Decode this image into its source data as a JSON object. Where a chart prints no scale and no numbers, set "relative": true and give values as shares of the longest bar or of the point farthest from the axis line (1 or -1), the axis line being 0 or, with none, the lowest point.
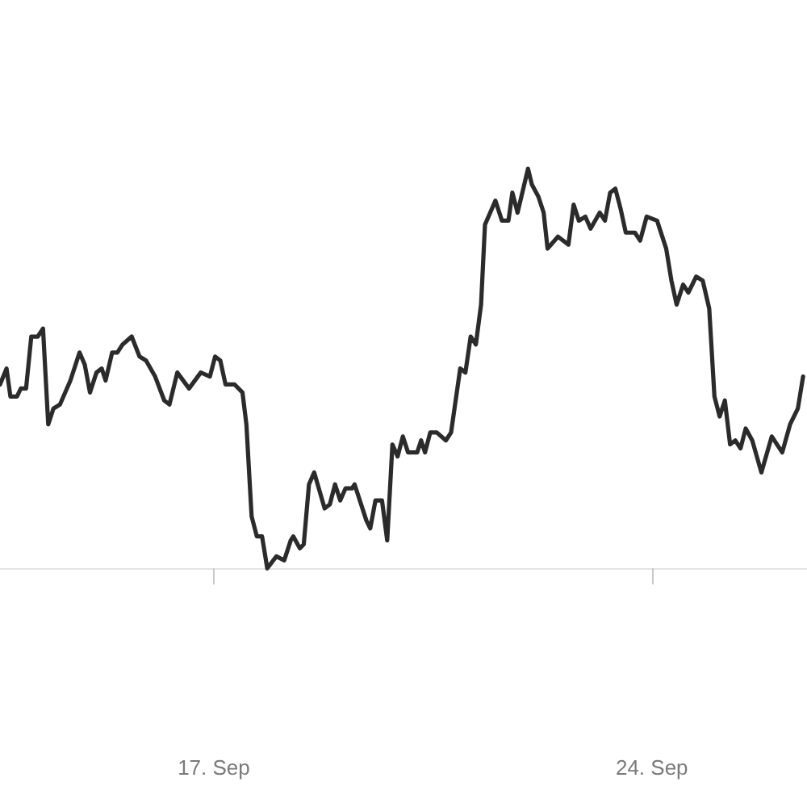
{
  "chart_data": {
    "type": "line",
    "relative": true,
    "xlim": [
      "--09-13T14:00",
      "--09-26T11:30"
    ],
    "xticks": [
      {
        "value": "--09-17",
        "label": "17. Sep"
      },
      {
        "value": "--09-24",
        "label": "24. Sep"
      }
    ],
    "x": [
      "--09-13T14:00",
      "--09-13T16:30",
      "--09-13T18:00",
      "--09-13T20:30",
      "--09-13T22:00",
      "--09-14T00:00",
      "--09-14T02:00",
      "--09-14T04:30",
      "--09-14T06:30",
      "--09-14T08:30",
      "--09-14T10:30",
      "--09-14T13:00",
      "--09-14T17:00",
      "--09-14T20:30",
      "--09-14T22:30",
      "--09-15T00:30",
      "--09-15T03:00",
      "--09-15T05:00",
      "--09-15T06:30",
      "--09-15T09:00",
      "--09-15T11:00",
      "--09-15T13:00",
      "--09-15T16:30",
      "--09-15T19:30",
      "--09-15T22:00",
      "--09-16T01:30",
      "--09-16T05:00",
      "--09-16T07:00",
      "--09-16T10:00",
      "--09-16T14:30",
      "--09-16T19:00",
      "--09-16T22:30",
      "--09-17T00:30",
      "--09-17T02:30",
      "--09-17T04:30",
      "--09-17T08:00",
      "--09-17T11:00",
      "--09-17T12:30",
      "--09-17T14:30",
      "--09-17T16:30",
      "--09-17T18:30",
      "--09-17T20:30",
      "--09-18T00:00",
      "--09-18T03:00",
      "--09-18T05:30",
      "--09-18T06:30",
      "--09-18T09:00",
      "--09-18T10:30",
      "--09-18T12:30",
      "--09-18T14:30",
      "--09-18T18:30",
      "--09-18T20:30",
      "--09-18T22:30",
      "--09-19T00:30",
      "--09-19T02:30",
      "--09-19T05:00",
      "--09-19T06:00",
      "--09-19T10:30",
      "--09-19T12:00",
      "--09-19T14:00",
      "--09-19T16:30",
      "--09-19T18:30",
      "--09-19T20:30",
      "--09-19T22:30",
      "--09-20T00:30",
      "--09-20T02:30",
      "--09-20T06:00",
      "--09-20T07:30",
      "--09-20T09:00",
      "--09-20T11:00",
      "--09-20T13:30",
      "--09-20T17:00",
      "--09-20T19:00",
      "--09-20T22:30",
      "--09-21T00:30",
      "--09-21T02:30",
      "--09-21T04:30",
      "--09-21T06:30",
      "--09-21T08:00",
      "--09-21T10:00",
      "--09-21T12:00",
      "--09-21T14:30",
      "--09-21T17:00",
      "--09-21T18:30",
      "--09-21T20:30",
      "--09-22T00:30",
      "--09-22T02:00",
      "--09-22T04:30",
      "--09-22T06:30",
      "--09-22T08:00",
      "--09-22T12:00",
      "--09-22T16:00",
      "--09-22T18:00",
      "--09-22T20:00",
      "--09-22T22:30",
      "--09-23T00:30",
      "--09-23T04:00",
      "--09-23T06:00",
      "--09-23T08:00",
      "--09-23T10:00",
      "--09-23T12:00",
      "--09-23T14:00",
      "--09-23T17:30",
      "--09-23T19:30",
      "--09-23T22:00",
      "--09-24T02:00",
      "--09-24T05:30",
      "--09-24T07:30",
      "--09-24T09:30",
      "--09-24T12:00",
      "--09-24T14:00",
      "--09-24T17:00",
      "--09-24T19:30",
      "--09-24T22:00",
      "--09-25T00:00",
      "--09-25T02:00",
      "--09-25T04:00",
      "--09-25T06:00",
      "--09-25T08:00",
      "--09-25T10:00",
      "--09-25T12:00",
      "--09-25T14:30",
      "--09-25T18:00",
      "--09-25T22:00",
      "--09-26T02:00",
      "--09-26T05:00",
      "--09-26T08:00",
      "--09-26T10:00"
    ],
    "series": [
      {
        "color": "#2b2b2b",
        "values": [
          0.46,
          0.5,
          0.43,
          0.43,
          0.45,
          0.45,
          0.58,
          0.58,
          0.6,
          0.36,
          0.4,
          0.41,
          0.47,
          0.54,
          0.51,
          0.44,
          0.49,
          0.5,
          0.47,
          0.54,
          0.54,
          0.56,
          0.58,
          0.53,
          0.52,
          0.48,
          0.42,
          0.41,
          0.49,
          0.45,
          0.49,
          0.48,
          0.53,
          0.52,
          0.46,
          0.46,
          0.44,
          0.36,
          0.13,
          0.08,
          0.08,
          0,
          0.03,
          0.02,
          0.07,
          0.08,
          0.05,
          0.06,
          0.21,
          0.24,
          0.15,
          0.16,
          0.21,
          0.17,
          0.2,
          0.2,
          0.21,
          0.12,
          0.1,
          0.17,
          0.17,
          0.07,
          0.31,
          0.28,
          0.33,
          0.29,
          0.29,
          0.32,
          0.29,
          0.34,
          0.34,
          0.32,
          0.34,
          0.5,
          0.49,
          0.58,
          0.56,
          0.66,
          0.86,
          0.89,
          0.92,
          0.87,
          0.87,
          0.94,
          0.89,
          1,
          0.96,
          0.93,
          0.89,
          0.8,
          0.83,
          0.81,
          0.91,
          0.87,
          0.88,
          0.85,
          0.89,
          0.87,
          0.94,
          0.95,
          0.9,
          0.84,
          0.84,
          0.82,
          0.88,
          0.87,
          0.8,
          0.72,
          0.66,
          0.71,
          0.69,
          0.73,
          0.72,
          0.65,
          0.43,
          0.38,
          0.42,
          0.31,
          0.32,
          0.3,
          0.35,
          0.32,
          0.24,
          0.33,
          0.29,
          0.36,
          0.4,
          0.48
        ]
      }
    ]
  }
}
